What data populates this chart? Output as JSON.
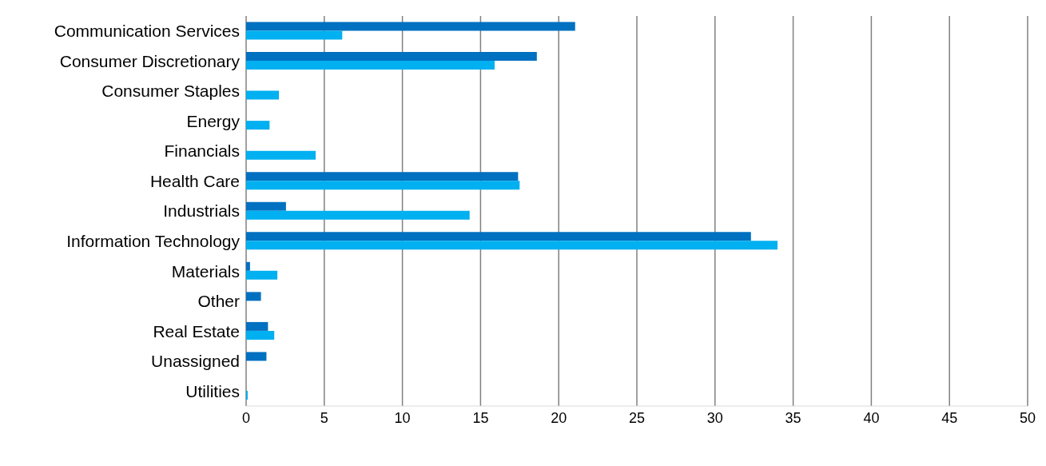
{
  "chart_data": {
    "type": "bar",
    "orientation": "horizontal",
    "categories": [
      "Communication Services",
      "Consumer Discretionary",
      "Consumer Staples",
      "Energy",
      "Financials",
      "Health Care",
      "Industrials",
      "Information Technology",
      "Materials",
      "Other",
      "Real Estate",
      "Unassigned",
      "Utilities"
    ],
    "series": [
      {
        "color": "#0070c0",
        "values": [
          21.05,
          18.6,
          null,
          null,
          null,
          17.4,
          2.55,
          32.3,
          0.25,
          0.95,
          1.4,
          1.3,
          null
        ]
      },
      {
        "color": "#00b0f0",
        "values": [
          6.15,
          15.9,
          2.1,
          1.5,
          4.45,
          17.5,
          14.3,
          34.0,
          2.0,
          null,
          1.8,
          null,
          0.1
        ]
      }
    ],
    "xlim": [
      0,
      50
    ],
    "xticks": [
      0,
      5,
      10,
      15,
      20,
      25,
      30,
      35,
      40,
      45,
      50
    ],
    "grid": "x",
    "legend": false
  }
}
